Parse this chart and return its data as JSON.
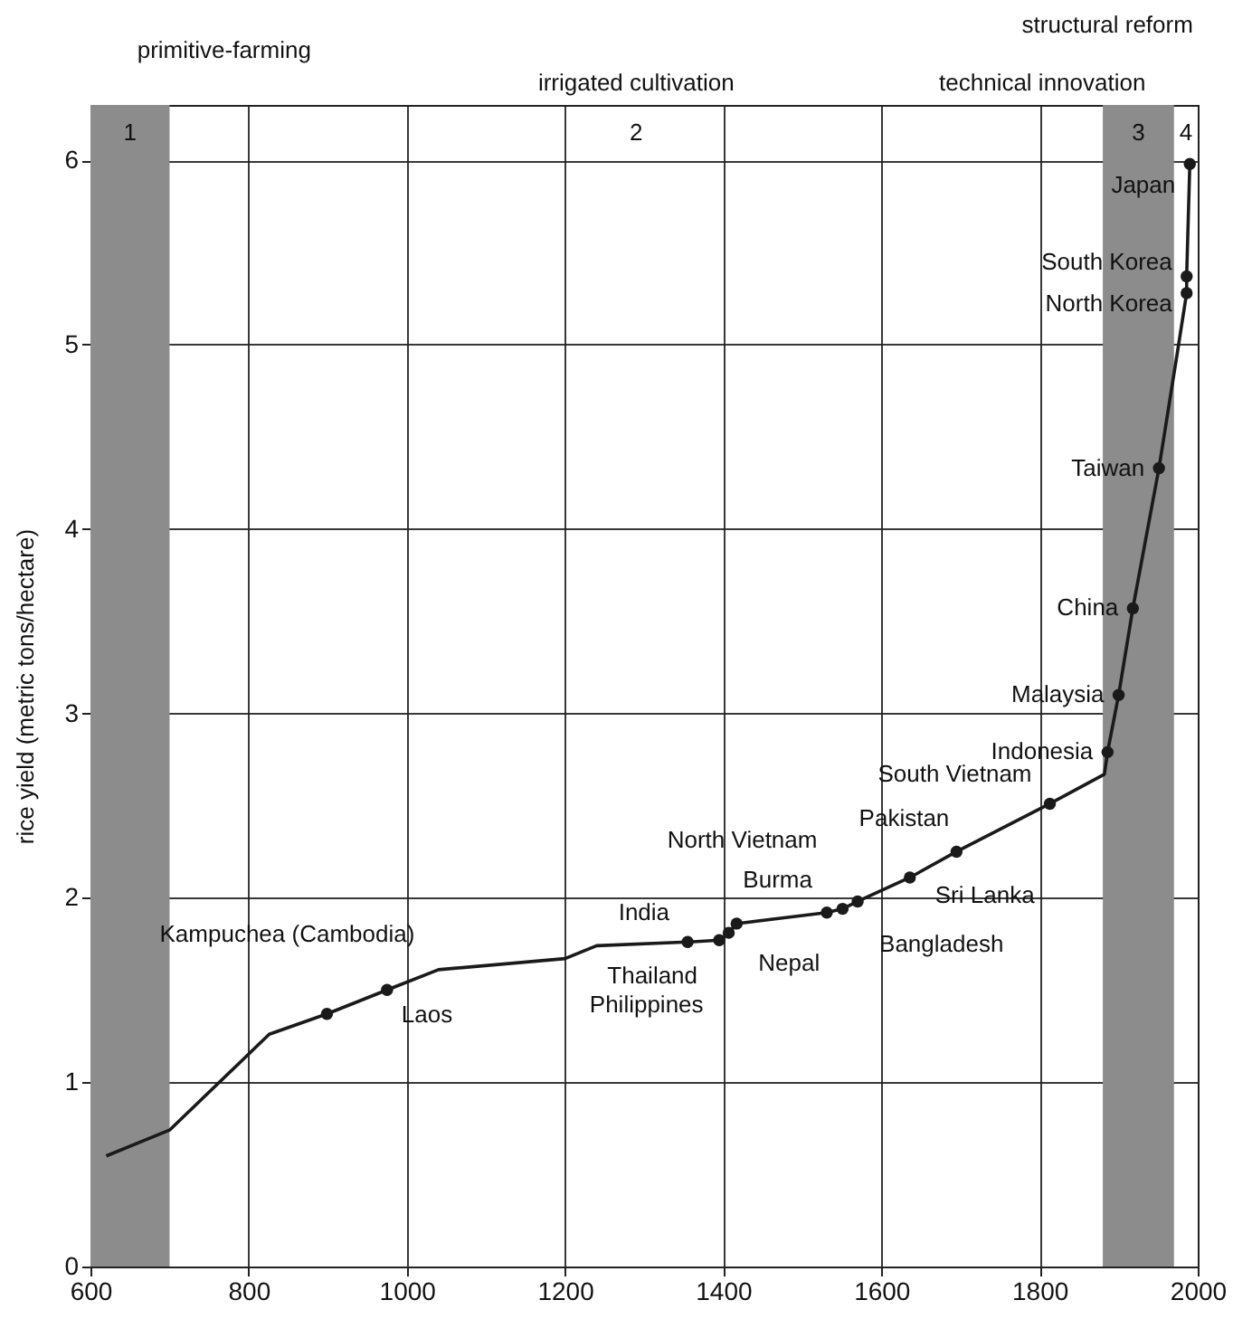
{
  "chart_data": {
    "type": "line",
    "ylabel": "rice yield (metric tons/hectare)",
    "xlim": [
      600,
      2000
    ],
    "xticks": [
      600,
      800,
      1000,
      1200,
      1400,
      1600,
      1800,
      2000
    ],
    "ylim": [
      0,
      6.3
    ],
    "yticks": [
      0,
      1,
      2,
      3,
      4,
      5,
      6
    ],
    "grid": true,
    "series": [
      {
        "type": "line",
        "color": "#1a1a1a",
        "marker": "none",
        "x": [
          620,
          700,
          826,
          899,
          975,
          1040,
          1200,
          1240,
          1355,
          1395,
          1407,
          1417,
          1531,
          1551,
          1570,
          1636,
          1695,
          1813,
          1882,
          1886,
          1900,
          1918,
          1951,
          1974,
          1986,
          1986,
          1990
        ],
        "values": [
          0.6,
          0.74,
          1.26,
          1.37,
          1.5,
          1.61,
          1.67,
          1.74,
          1.76,
          1.77,
          1.81,
          1.86,
          1.92,
          1.94,
          1.98,
          2.11,
          2.25,
          2.51,
          2.67,
          2.79,
          3.1,
          3.57,
          4.33,
          4.95,
          5.28,
          5.37,
          5.98
        ]
      },
      {
        "type": "scatter",
        "color": "#1a1a1a",
        "marker": "circle",
        "x": [
          899,
          975,
          1355,
          1395,
          1407,
          1417,
          1531,
          1551,
          1570,
          1636,
          1695,
          1813,
          1886,
          1900,
          1918,
          1951,
          1986,
          1986,
          1990
        ],
        "values": [
          1.37,
          1.5,
          1.76,
          1.77,
          1.81,
          1.86,
          1.92,
          1.94,
          1.98,
          2.11,
          2.25,
          2.51,
          2.79,
          3.1,
          3.57,
          4.33,
          5.28,
          5.37,
          5.98
        ]
      }
    ],
    "bands": [
      {
        "axis": "x",
        "from": 600,
        "to": 700,
        "label": "1",
        "color": "#8c8c8c"
      },
      {
        "axis": "x",
        "from": 1880,
        "to": 1970,
        "label": "3",
        "color": "#8c8c8c"
      }
    ],
    "annotations": [
      {
        "text": "Kampuchea (Cambodia)",
        "x": 899,
        "y": 1.37
      },
      {
        "text": "Laos",
        "x": 975,
        "y": 1.5
      },
      {
        "text": "India",
        "x": 1355,
        "y": 1.76
      },
      {
        "text": "Thailand",
        "x": 1395,
        "y": 1.77
      },
      {
        "text": "Philippines",
        "x": 1407,
        "y": 1.81
      },
      {
        "text": "Nepal",
        "x": 1417,
        "y": 1.86
      },
      {
        "text": "Burma",
        "x": 1531,
        "y": 1.92
      },
      {
        "text": "North Vietnam",
        "x": 1551,
        "y": 1.94
      },
      {
        "text": "Bangladesh",
        "x": 1570,
        "y": 1.98
      },
      {
        "text": "Sri Lanka",
        "x": 1636,
        "y": 2.11
      },
      {
        "text": "Pakistan",
        "x": 1695,
        "y": 2.25
      },
      {
        "text": "South Vietnam",
        "x": 1813,
        "y": 2.51
      },
      {
        "text": "Indonesia",
        "x": 1886,
        "y": 2.79
      },
      {
        "text": "Malaysia",
        "x": 1900,
        "y": 3.1
      },
      {
        "text": "China",
        "x": 1918,
        "y": 3.57
      },
      {
        "text": "Taiwan",
        "x": 1951,
        "y": 4.33
      },
      {
        "text": "North Korea",
        "x": 1986,
        "y": 5.28
      },
      {
        "text": "South Korea",
        "x": 1986,
        "y": 5.37
      },
      {
        "text": "Japan",
        "x": 1990,
        "y": 5.98
      },
      "2",
      "4",
      "primitive-farming",
      "irrigated cultivation",
      "technical innovation",
      "structural reform"
    ]
  }
}
